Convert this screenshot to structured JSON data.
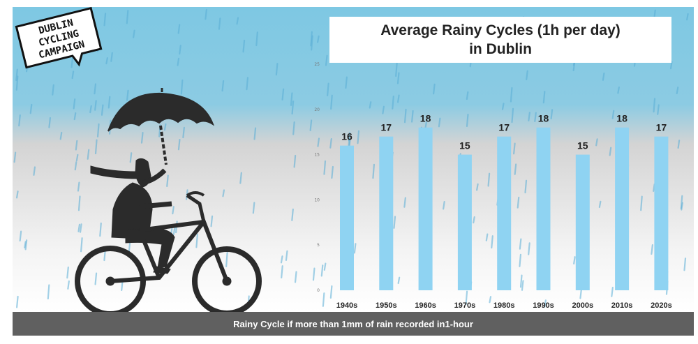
{
  "brand": {
    "logo_line1": "DUBLIN",
    "logo_line2": "CYCLING",
    "logo_line3": "CAMPAIGN"
  },
  "colors": {
    "sky_top": "#7ec8e3",
    "sky_bottom": "#ffffff",
    "bar": "#8fd3f2",
    "silhouette": "#2b2b2b",
    "raindrop": "#5aaed6",
    "footer_bg": "#606060"
  },
  "chart_data": {
    "type": "bar",
    "title_line1": "Average Rainy Cycles (1h per day)",
    "title_line2": "in Dublin",
    "categories": [
      "1940s",
      "1950s",
      "1960s",
      "1970s",
      "1980s",
      "1990s",
      "2000s",
      "2010s",
      "2020s"
    ],
    "values": [
      16,
      17,
      18,
      15,
      17,
      18,
      15,
      18,
      17
    ],
    "ylim": [
      0,
      25
    ],
    "yticks": [
      0,
      5,
      10,
      15,
      20,
      25
    ],
    "xlabel": "",
    "ylabel": "",
    "grid": false,
    "footnote": "Rainy Cycle if more than 1mm of rain recorded in1-hour"
  }
}
